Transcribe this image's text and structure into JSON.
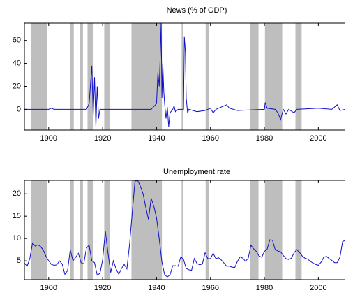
{
  "chart_data": [
    {
      "type": "line",
      "title": "News (% of GDP)",
      "color": "#1010c8",
      "shade_color": "#bebebe",
      "xlim": [
        1891,
        2010
      ],
      "xticks": [
        1900,
        1920,
        1940,
        1960,
        1980,
        2000
      ],
      "ylim": [
        -18,
        75
      ],
      "yticks": [
        0,
        20,
        40,
        60
      ],
      "shaded_periods": [
        [
          1893.5,
          1899.3
        ],
        [
          1908,
          1909.3
        ],
        [
          1911.5,
          1912.7
        ],
        [
          1914.4,
          1916.5
        ],
        [
          1920.6,
          1922.7
        ],
        [
          1930.7,
          1942
        ],
        [
          1949.3,
          1949.8
        ],
        [
          1958.2,
          1959.3
        ],
        [
          1974.7,
          1977.8
        ],
        [
          1980.2,
          1986.6
        ],
        [
          1991.5,
          1993.8
        ]
      ],
      "x": [
        1891,
        1900,
        1901,
        1902,
        1914,
        1915,
        1916,
        1916.5,
        1917,
        1917.5,
        1918,
        1918.5,
        1919,
        1938,
        1940,
        1940.5,
        1941,
        1941.3,
        1941.7,
        1942,
        1942.3,
        1942.7,
        1943,
        1943.5,
        1944,
        1944.5,
        1945,
        1946,
        1946.5,
        1947,
        1948,
        1950,
        1950.3,
        1950.7,
        1951,
        1951.5,
        1952,
        1955,
        1958,
        1960,
        1961,
        1962,
        1966,
        1967,
        1970,
        1980,
        1980.3,
        1981,
        1984,
        1985,
        1986,
        1987,
        1988,
        1989,
        1991,
        1992,
        2000,
        2005,
        2007,
        2008,
        2010
      ],
      "values": [
        0,
        0,
        1,
        0,
        0,
        5,
        38,
        -5,
        28,
        -15,
        20,
        -8,
        0,
        0,
        5,
        32,
        20,
        42,
        75,
        10,
        40,
        15,
        5,
        -8,
        2,
        -15,
        -3,
        0,
        3,
        -2,
        0,
        0,
        63,
        50,
        10,
        -3,
        0,
        -2,
        -1,
        1,
        -3,
        0,
        4,
        1,
        -1,
        0,
        6,
        1,
        0,
        -3,
        -9,
        0,
        -4,
        0,
        -3,
        0,
        1,
        0,
        4,
        -1,
        0
      ]
    },
    {
      "type": "line",
      "title": "Unemployment rate",
      "color": "#1010c8",
      "shade_color": "#bebebe",
      "xlim": [
        1891,
        2010
      ],
      "xticks": [
        1900,
        1920,
        1940,
        1960,
        1980,
        2000
      ],
      "ylim": [
        0.8,
        23
      ],
      "yticks": [
        5,
        10,
        15,
        20
      ],
      "shaded_periods": [
        [
          1893.5,
          1899.3
        ],
        [
          1908,
          1909.3
        ],
        [
          1911.5,
          1912.7
        ],
        [
          1914.4,
          1916.5
        ],
        [
          1920.6,
          1922.7
        ],
        [
          1930.7,
          1942
        ],
        [
          1949.3,
          1949.8
        ],
        [
          1958.2,
          1959.3
        ],
        [
          1974.7,
          1977.8
        ],
        [
          1980.2,
          1986.6
        ],
        [
          1991.5,
          1993.8
        ]
      ],
      "x": [
        1891,
        1892,
        1893,
        1894,
        1895,
        1896,
        1897,
        1898,
        1899,
        1900,
        1901,
        1902,
        1903,
        1904,
        1905,
        1906,
        1907,
        1908,
        1909,
        1910,
        1911,
        1912,
        1913,
        1914,
        1915,
        1916,
        1917,
        1918,
        1919,
        1920,
        1921,
        1922,
        1923,
        1924,
        1925,
        1926,
        1927,
        1928,
        1929,
        1930,
        1931,
        1932,
        1933,
        1934,
        1935,
        1936,
        1937,
        1938,
        1939,
        1940,
        1941,
        1942,
        1943,
        1944,
        1945,
        1946,
        1947,
        1948,
        1949,
        1950,
        1951,
        1952,
        1953,
        1954,
        1955,
        1956,
        1957,
        1958,
        1959,
        1960,
        1961,
        1962,
        1963,
        1964,
        1965,
        1966,
        1967,
        1968,
        1969,
        1970,
        1971,
        1972,
        1973,
        1974,
        1975,
        1976,
        1977,
        1978,
        1979,
        1980,
        1981,
        1982,
        1983,
        1984,
        1985,
        1986,
        1987,
        1988,
        1989,
        1990,
        1991,
        1992,
        1993,
        1994,
        1995,
        1996,
        1997,
        1998,
        1999,
        2000,
        2001,
        2002,
        2003,
        2004,
        2005,
        2006,
        2007,
        2008,
        2009,
        2010
      ],
      "values": [
        4.5,
        3.8,
        5.5,
        9,
        8.3,
        8.6,
        8.2,
        7.4,
        6,
        5,
        4.2,
        4,
        4.1,
        5,
        4.3,
        2,
        2.8,
        7.5,
        5,
        5.8,
        6.7,
        4.6,
        4.3,
        7.9,
        8.5,
        5,
        4.6,
        1.8,
        2.2,
        5.2,
        11.7,
        6.7,
        2.4,
        5,
        3.2,
        2,
        3.3,
        4.2,
        3.2,
        8.7,
        15.9,
        22.8,
        23,
        21.7,
        20,
        17,
        14.3,
        19,
        17.2,
        14.6,
        9.9,
        4.7,
        1.9,
        1.4,
        1.9,
        3.9,
        3.9,
        3.8,
        5.9,
        5.3,
        3.3,
        3,
        2.9,
        5.5,
        4.4,
        4.1,
        4.3,
        6.8,
        5.5,
        5.5,
        6.7,
        5.5,
        5.7,
        5.2,
        4.5,
        3.8,
        3.8,
        3.6,
        3.5,
        4.9,
        5.9,
        5.6,
        4.9,
        5.6,
        8.5,
        7.7,
        7.1,
        6.1,
        5.8,
        7.1,
        7.6,
        9.7,
        9.6,
        7.5,
        7.2,
        7,
        6.2,
        5.5,
        5.3,
        5.6,
        6.8,
        7.5,
        6.9,
        6.1,
        5.6,
        5.4,
        4.9,
        4.5,
        4.2,
        4,
        4.7,
        5.8,
        6,
        5.5,
        5.1,
        4.6,
        4.6,
        5.8,
        9.3,
        9.6
      ]
    }
  ]
}
